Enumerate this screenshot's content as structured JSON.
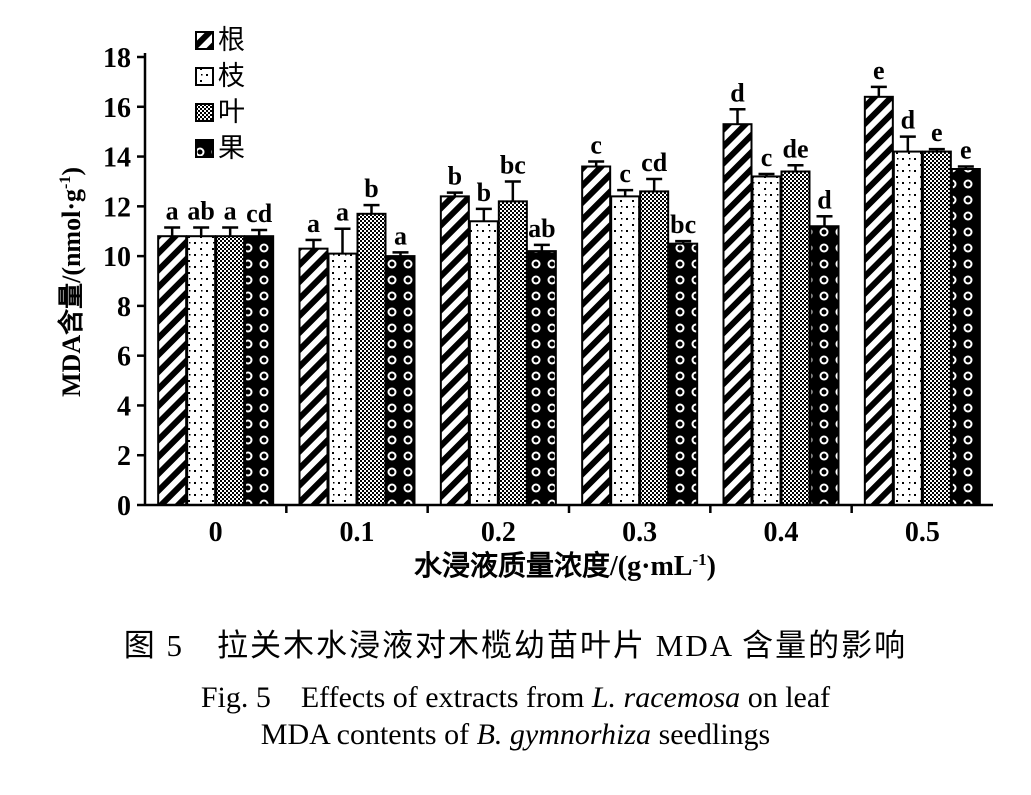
{
  "chart_data": {
    "type": "bar",
    "ylabel": "MDA含量/(nmol·g",
    "ylabel_sup": "-1",
    "ylabel_tail": ")",
    "xlabel": "水浸液质量浓度/(g·mL",
    "xlabel_sup": "-1",
    "xlabel_tail": ")",
    "categories": [
      "0",
      "0.1",
      "0.2",
      "0.3",
      "0.4",
      "0.5"
    ],
    "ylim": [
      0,
      18
    ],
    "yticks": [
      "0",
      "2",
      "4",
      "6",
      "8",
      "10",
      "12",
      "14",
      "16",
      "18"
    ],
    "legend_position": "top-left",
    "series": [
      {
        "name": "根",
        "pattern": "diagonal-stripes",
        "values": [
          10.8,
          10.3,
          12.4,
          13.6,
          15.3,
          16.4
        ],
        "errors": [
          0.35,
          0.35,
          0.15,
          0.2,
          0.6,
          0.4
        ],
        "letters": [
          "a",
          "a",
          "b",
          "c",
          "d",
          "e"
        ]
      },
      {
        "name": "枝",
        "pattern": "sparse-dots",
        "values": [
          10.8,
          10.1,
          11.4,
          12.4,
          13.2,
          14.2
        ],
        "errors": [
          0.35,
          1.0,
          0.5,
          0.25,
          0.1,
          0.6
        ],
        "letters": [
          "ab",
          "a",
          "b",
          "c",
          "c",
          "d"
        ]
      },
      {
        "name": "叶",
        "pattern": "dense-checker",
        "values": [
          10.8,
          11.7,
          12.2,
          12.6,
          13.4,
          14.2
        ],
        "errors": [
          0.35,
          0.35,
          0.8,
          0.5,
          0.25,
          0.1
        ],
        "letters": [
          "a",
          "b",
          "bc",
          "cd",
          "de",
          "e"
        ]
      },
      {
        "name": "果",
        "pattern": "black-circles",
        "values": [
          10.8,
          10.0,
          10.2,
          10.5,
          11.2,
          13.5
        ],
        "errors": [
          0.25,
          0.15,
          0.25,
          0.1,
          0.4,
          0.1
        ],
        "letters": [
          "cd",
          "a",
          "ab",
          "bc",
          "d",
          "e"
        ]
      }
    ]
  },
  "caption": {
    "cn": "图 5　拉关木水浸液对木榄幼苗叶片 MDA 含量的影响",
    "en_line1_a": "Fig. 5　Effects of extracts from ",
    "en_line1_b": "L. racemosa",
    "en_line1_c": " on leaf",
    "en_line2_a": "MDA contents of ",
    "en_line2_b": "B. gymnorhiza",
    "en_line2_c": " seedlings"
  }
}
